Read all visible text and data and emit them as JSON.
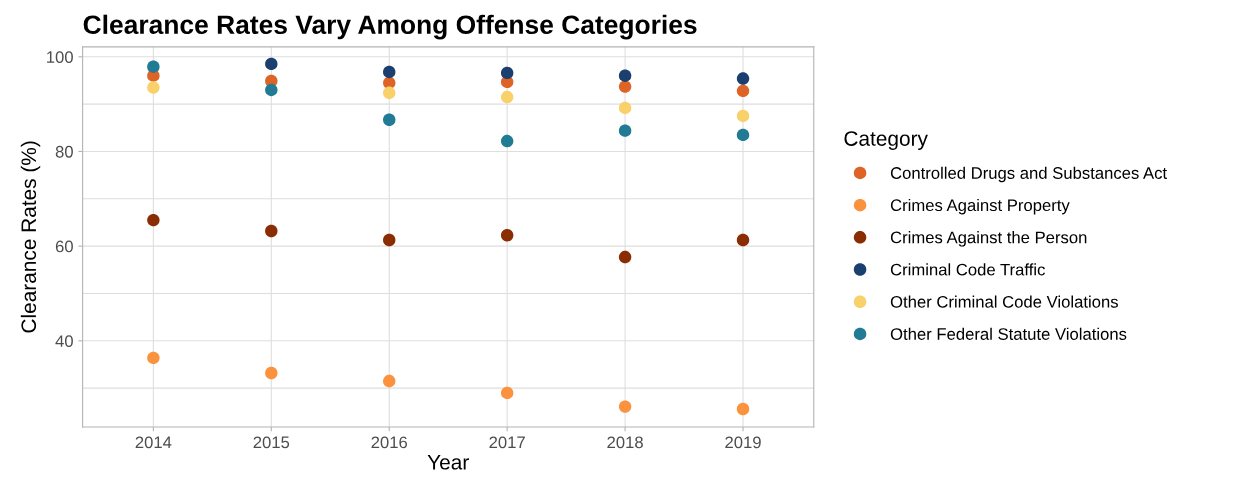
{
  "chart_data": {
    "type": "scatter",
    "title": "Clearance Rates Vary Among Offense Categories",
    "xlabel": "Year",
    "ylabel": "Clearance Rates (%)",
    "legend_title": "Category",
    "x": [
      2014,
      2015,
      2016,
      2017,
      2018,
      2019
    ],
    "series": [
      {
        "name": "Controlled Drugs and Substances Act",
        "color": "#dd6426",
        "values": [
          96.0,
          94.9,
          94.5,
          94.7,
          93.7,
          92.8
        ]
      },
      {
        "name": "Crimes Against Property",
        "color": "#fb923e",
        "values": [
          36.4,
          33.2,
          31.5,
          29.0,
          26.1,
          25.6
        ]
      },
      {
        "name": "Crimes Against the Person",
        "color": "#8b2d02",
        "values": [
          65.5,
          63.2,
          61.3,
          62.3,
          57.7,
          61.3
        ]
      },
      {
        "name": "Criminal Code Traffic",
        "color": "#1b3f6e",
        "values": [
          null,
          98.5,
          96.8,
          96.6,
          96.0,
          95.4
        ]
      },
      {
        "name": "Other Criminal Code Violations",
        "color": "#f8d16b",
        "values": [
          93.5,
          null,
          92.4,
          91.5,
          89.2,
          87.5
        ]
      },
      {
        "name": "Other Federal Statute Violations",
        "color": "#227b94",
        "values": [
          97.9,
          93.0,
          86.7,
          82.2,
          84.4,
          83.5
        ]
      }
    ],
    "xlim": [
      2013.4,
      2019.6
    ],
    "xticks": [
      2014,
      2015,
      2016,
      2017,
      2018,
      2019
    ],
    "ylim": [
      21.8,
      102.1
    ],
    "yticks": [
      {
        "value": 30,
        "label": null
      },
      40,
      {
        "value": 50,
        "label": null
      },
      60,
      {
        "value": 70,
        "label": null
      },
      80,
      {
        "value": 90,
        "label": null
      },
      100
    ],
    "grid": true,
    "legend": "right",
    "marker": "circle"
  }
}
